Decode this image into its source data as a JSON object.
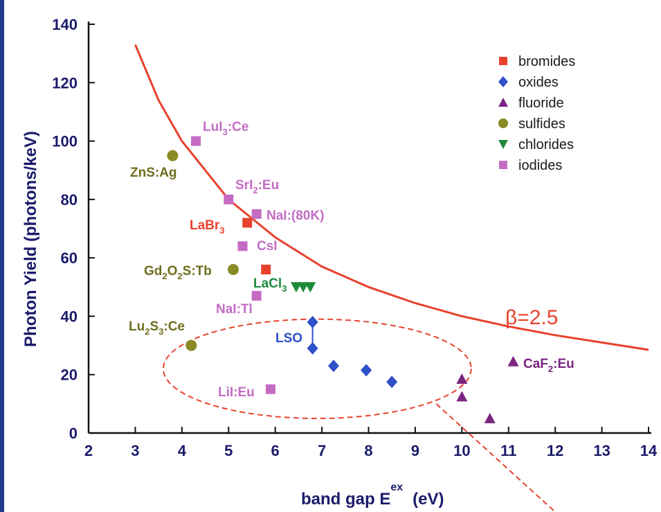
{
  "chart_data": {
    "type": "scatter",
    "title": "",
    "xlabel": "band gap E",
    "xlabel_sup": "ex",
    "xlabel_unit": "(eV)",
    "ylabel": "Photon Yield (photons/keV)",
    "xlim": [
      2,
      14
    ],
    "ylim": [
      0,
      140
    ],
    "xticks": [
      "2",
      "3",
      "4",
      "5",
      "6",
      "7",
      "8",
      "9",
      "10",
      "11",
      "12",
      "13",
      "14"
    ],
    "yticks": [
      "0",
      "20",
      "40",
      "60",
      "80",
      "100",
      "120",
      "140"
    ],
    "grid": false,
    "legend_position": "top-right",
    "series": [
      {
        "name": "bromides",
        "marker": "square",
        "color": "#e8412d",
        "points": [
          {
            "x": 5.4,
            "y": 72
          },
          {
            "x": 5.8,
            "y": 56
          }
        ]
      },
      {
        "name": "oxides",
        "marker": "diamond",
        "color": "#2e50c8",
        "points": [
          {
            "x": 6.8,
            "y": 38
          },
          {
            "x": 6.8,
            "y": 29
          },
          {
            "x": 7.25,
            "y": 23
          },
          {
            "x": 7.95,
            "y": 21.5
          },
          {
            "x": 8.5,
            "y": 17.5
          }
        ]
      },
      {
        "name": "fluoride",
        "marker": "triangle-up",
        "color": "#7a2580",
        "points": [
          {
            "x": 10.0,
            "y": 18.5
          },
          {
            "x": 10.0,
            "y": 12.5
          },
          {
            "x": 10.6,
            "y": 5
          },
          {
            "x": 11.1,
            "y": 24.5
          }
        ]
      },
      {
        "name": "sulfides",
        "marker": "circle",
        "color": "#8a8a24",
        "points": [
          {
            "x": 3.8,
            "y": 95
          },
          {
            "x": 5.1,
            "y": 56
          },
          {
            "x": 4.2,
            "y": 30
          }
        ]
      },
      {
        "name": "chlorides",
        "marker": "triangle-down",
        "color": "#1f8a3a",
        "points": [
          {
            "x": 6.45,
            "y": 50
          },
          {
            "x": 6.6,
            "y": 50
          },
          {
            "x": 6.75,
            "y": 50
          }
        ]
      },
      {
        "name": "iodides",
        "marker": "square",
        "color": "#c46cc4",
        "points": [
          {
            "x": 4.3,
            "y": 100
          },
          {
            "x": 5.0,
            "y": 80
          },
          {
            "x": 5.6,
            "y": 75
          },
          {
            "x": 5.3,
            "y": 64
          },
          {
            "x": 5.6,
            "y": 47
          },
          {
            "x": 5.9,
            "y": 15
          }
        ]
      }
    ],
    "curve": {
      "label": "β=2.5",
      "color": "#e8412d",
      "points": [
        [
          3.0,
          133
        ],
        [
          3.5,
          114
        ],
        [
          4.0,
          100
        ],
        [
          5.0,
          80
        ],
        [
          6.0,
          67
        ],
        [
          7.0,
          57
        ],
        [
          8.0,
          50
        ],
        [
          9.0,
          44.5
        ],
        [
          10.0,
          40
        ],
        [
          11.0,
          36.5
        ],
        [
          12.0,
          33.5
        ],
        [
          13.0,
          31
        ],
        [
          14.0,
          28.5
        ]
      ]
    },
    "annotations": [
      {
        "text": "LuI",
        "sub": "3",
        "tail": ":Ce",
        "color": "#c46cc4"
      },
      {
        "text": "ZnS:Ag",
        "sub": "",
        "tail": "",
        "color": "#6e6e1c"
      },
      {
        "text": "SrI",
        "sub": "2",
        "tail": ":Eu",
        "color": "#c46cc4"
      },
      {
        "text": "NaI:(80K)",
        "sub": "",
        "tail": "",
        "color": "#c46cc4"
      },
      {
        "text": "LaBr",
        "sub": "3",
        "tail": "",
        "color": "#e8412d"
      },
      {
        "text": "CsI",
        "sub": "",
        "tail": "",
        "color": "#c46cc4"
      },
      {
        "text": "Gd",
        "sub": "2",
        "tail": "O",
        "sub2": "2",
        "tail2": "S:Tb",
        "color": "#6e6e1c"
      },
      {
        "text": "LaCl",
        "sub": "3",
        "tail": "",
        "color": "#1f8a3a"
      },
      {
        "text": "NaI:Tl",
        "sub": "",
        "tail": "",
        "color": "#c46cc4"
      },
      {
        "text": "Lu",
        "sub": "2",
        "tail": "S",
        "sub2": "3",
        "tail2": ":Ce",
        "color": "#6e6e1c"
      },
      {
        "text": "LSO",
        "sub": "",
        "tail": "",
        "color": "#2e50c8"
      },
      {
        "text": "LiI:Eu",
        "sub": "",
        "tail": "",
        "color": "#c46cc4"
      },
      {
        "text": "CaF",
        "sub": "2",
        "tail": ":Eu",
        "color": "#7a2580"
      }
    ],
    "ellipse": {
      "center_x": 6.9,
      "center_y": 22,
      "rx_data": 3.3,
      "ry_data": 17,
      "color": "#e8412d",
      "style": "dashed"
    }
  }
}
